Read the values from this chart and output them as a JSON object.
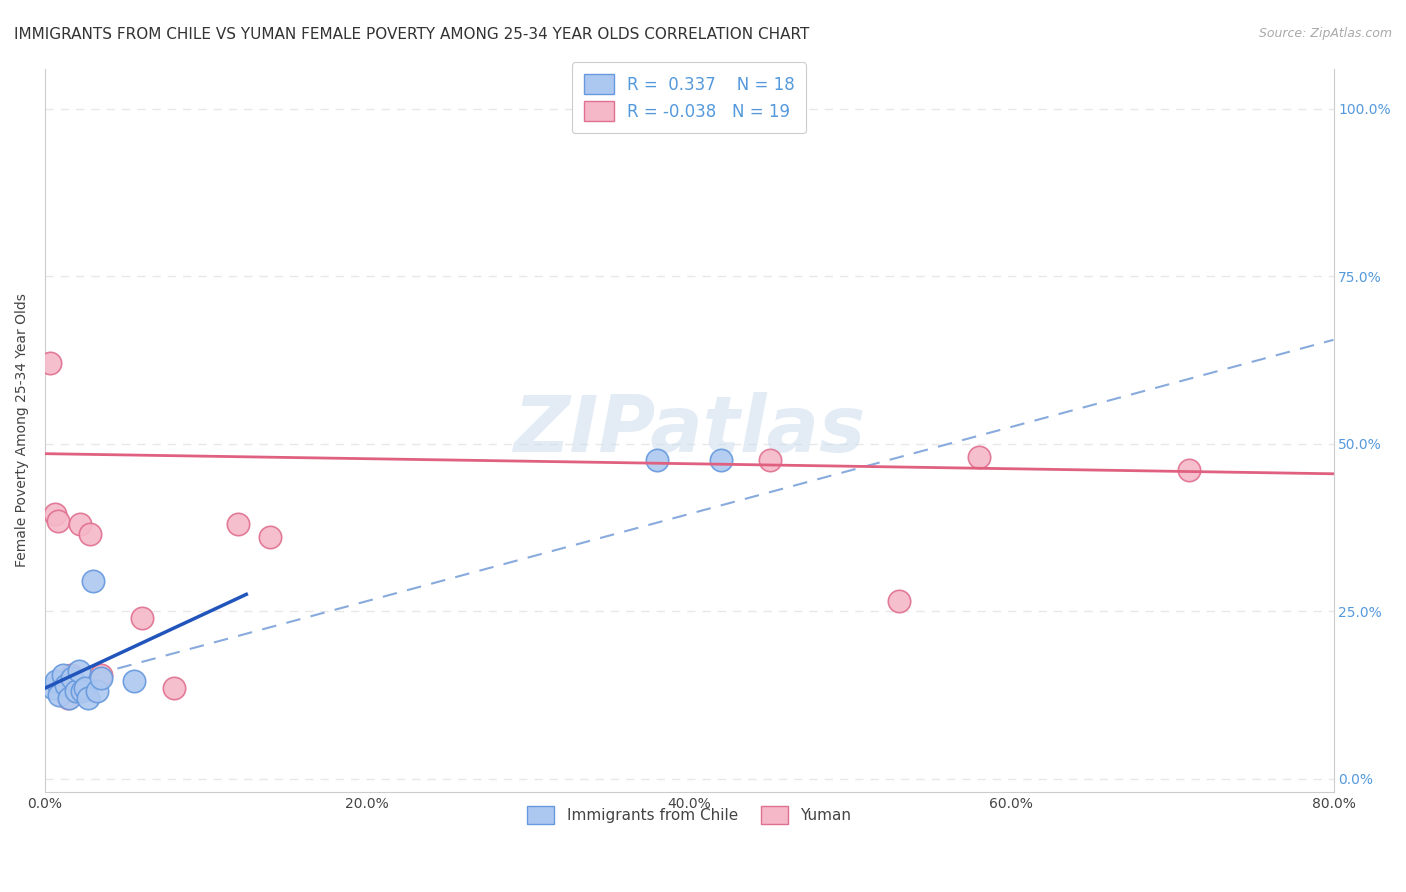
{
  "title": "IMMIGRANTS FROM CHILE VS YUMAN FEMALE POVERTY AMONG 25-34 YEAR OLDS CORRELATION CHART",
  "source": "Source: ZipAtlas.com",
  "ylabel": "Female Poverty Among 25-34 Year Olds",
  "xlim": [
    0.0,
    0.8
  ],
  "ylim": [
    -0.02,
    1.06
  ],
  "xtick_values": [
    0.0,
    0.2,
    0.4,
    0.6,
    0.8
  ],
  "ytick_values": [
    0.0,
    0.25,
    0.5,
    0.75,
    1.0
  ],
  "series1_color": "#adc8f0",
  "series1_edge": "#6699dd",
  "series2_color": "#f5b8c8",
  "series2_edge": "#e07090",
  "line1_color": "#2255bb",
  "line2_color": "#e06080",
  "dashed_line_color": "#88aadd",
  "R1": 0.337,
  "N1": 18,
  "R2": -0.038,
  "N2": 19,
  "legend_label1": "Immigrants from Chile",
  "legend_label2": "Yuman",
  "blue_points_x": [
    0.005,
    0.007,
    0.009,
    0.011,
    0.013,
    0.015,
    0.017,
    0.019,
    0.021,
    0.023,
    0.025,
    0.027,
    0.03,
    0.032,
    0.035,
    0.055,
    0.38,
    0.42
  ],
  "blue_points_y": [
    0.135,
    0.145,
    0.125,
    0.155,
    0.14,
    0.12,
    0.15,
    0.13,
    0.16,
    0.13,
    0.135,
    0.12,
    0.295,
    0.13,
    0.15,
    0.145,
    0.475,
    0.475
  ],
  "pink_points_x": [
    0.003,
    0.006,
    0.008,
    0.01,
    0.012,
    0.014,
    0.016,
    0.018,
    0.022,
    0.028,
    0.035,
    0.06,
    0.08,
    0.12,
    0.14,
    0.45,
    0.53,
    0.58,
    0.71
  ],
  "pink_points_y": [
    0.62,
    0.395,
    0.385,
    0.135,
    0.14,
    0.12,
    0.155,
    0.13,
    0.38,
    0.365,
    0.155,
    0.24,
    0.135,
    0.38,
    0.36,
    0.475,
    0.265,
    0.48,
    0.46
  ],
  "background_color": "#ffffff",
  "grid_color": "#e8e8e8",
  "title_fontsize": 11,
  "axis_fontsize": 10,
  "tick_fontsize": 10,
  "right_ytick_color": "#5599dd",
  "blue_line_x0": 0.0,
  "blue_line_x1": 0.125,
  "blue_line_y0": 0.135,
  "blue_line_y1": 0.275,
  "pink_line_x0": 0.0,
  "pink_line_x1": 0.8,
  "pink_line_y0": 0.485,
  "pink_line_y1": 0.455,
  "dash_line_x0": 0.0,
  "dash_line_x1": 0.8,
  "dash_line_y0": 0.135,
  "dash_line_y1": 0.655
}
